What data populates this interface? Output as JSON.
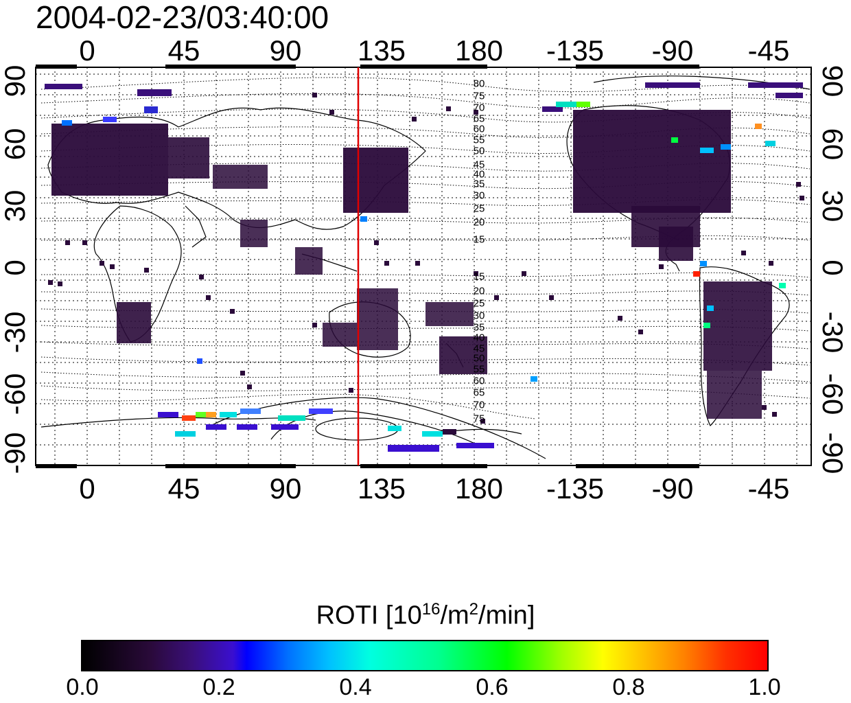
{
  "timestamp": "2004-02-23/03:40:00",
  "lon_ticks": [
    "0",
    "45",
    "90",
    "135",
    "180",
    "-135",
    "-90",
    "-45"
  ],
  "lat_ticks": [
    "90",
    "60",
    "30",
    "0",
    "-30",
    "-60",
    "-90"
  ],
  "mlat_labels": [
    "80",
    "75",
    "70",
    "65",
    "60",
    "55",
    "50",
    "45",
    "40",
    "35",
    "30",
    "25",
    "20",
    "15",
    "15",
    "20",
    "25",
    "30",
    "35",
    "40",
    "45",
    "50",
    "55",
    "60",
    "65",
    "70",
    "75"
  ],
  "colorbar": {
    "title_main": "ROTI  [10",
    "title_sup1": "16",
    "title_mid": "/m",
    "title_sup2": "2",
    "title_end": "/min]",
    "ticks": [
      "0.0",
      "0.2",
      "0.4",
      "0.6",
      "0.8",
      "1.0"
    ]
  },
  "map": {
    "projection": "equirectangular",
    "lon_range": [
      -20,
      340
    ],
    "lat_range": [
      -90,
      90
    ],
    "terminator_longitude": 121.5,
    "terminator_color": "#e00000",
    "background": "#ffffff",
    "grid": "dotted"
  }
}
